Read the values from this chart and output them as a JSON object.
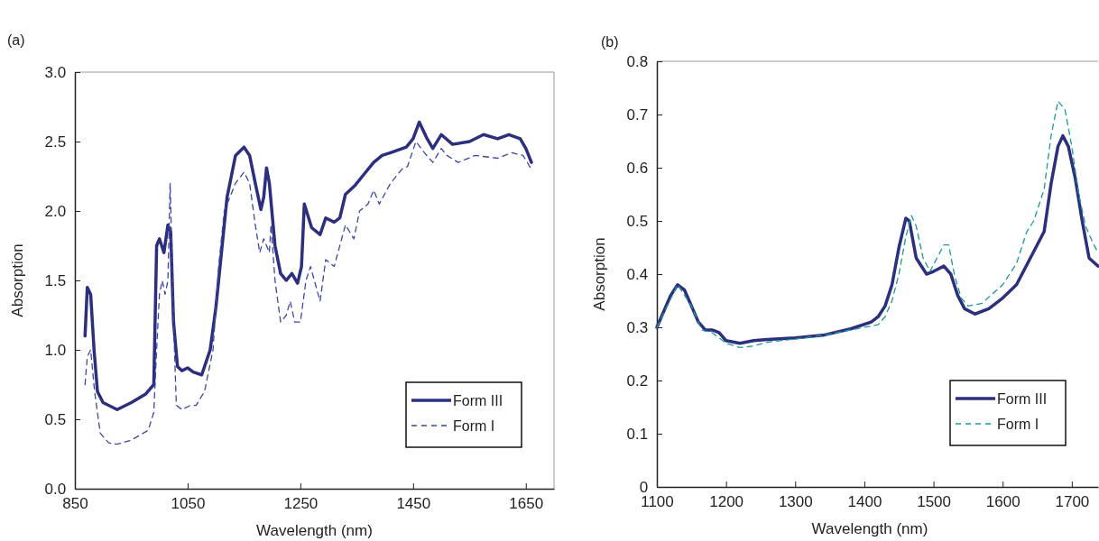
{
  "chart_data": [
    {
      "type": "line",
      "title": "(a)",
      "xlabel": "Wavelength (nm)",
      "ylabel": "Absorption",
      "xlim": [
        850,
        1700
      ],
      "xticks": [
        850,
        1050,
        1250,
        1450,
        1650
      ],
      "ylim": [
        0,
        3
      ],
      "yticks": [
        {
          "value": 0,
          "label": "0.0"
        },
        0.5,
        {
          "value": 1,
          "label": "1.0"
        },
        1.5,
        {
          "value": 2,
          "label": "2.0"
        },
        2.5,
        {
          "value": 3,
          "label": "3.0"
        }
      ],
      "legend": "bottom right",
      "grid": false,
      "series": [
        {
          "name": "Form III",
          "color": "#2b2f7e",
          "line_style": "solid",
          "x": [
            868,
            872,
            878,
            884,
            890,
            900,
            925,
            950,
            975,
            990,
            995,
            1000,
            1008,
            1015,
            1020,
            1025,
            1032,
            1040,
            1050,
            1060,
            1075,
            1090,
            1100,
            1110,
            1120,
            1135,
            1150,
            1160,
            1170,
            1180,
            1185,
            1190,
            1195,
            1205,
            1215,
            1225,
            1235,
            1245,
            1252,
            1257,
            1270,
            1285,
            1295,
            1310,
            1320,
            1330,
            1346,
            1360,
            1380,
            1395,
            1410,
            1438,
            1450,
            1461,
            1475,
            1485,
            1500,
            1520,
            1550,
            1575,
            1600,
            1620,
            1640,
            1650,
            1655,
            1660
          ],
          "values": [
            1.1,
            1.45,
            1.4,
            1.0,
            0.7,
            0.62,
            0.57,
            0.62,
            0.68,
            0.75,
            1.75,
            1.8,
            1.7,
            1.9,
            1.85,
            1.2,
            0.88,
            0.85,
            0.87,
            0.84,
            0.82,
            1.0,
            1.3,
            1.7,
            2.1,
            2.4,
            2.46,
            2.4,
            2.2,
            2.01,
            2.1,
            2.31,
            2.2,
            1.75,
            1.55,
            1.5,
            1.55,
            1.48,
            1.6,
            2.05,
            1.88,
            1.83,
            1.95,
            1.92,
            1.95,
            2.12,
            2.18,
            2.25,
            2.35,
            2.4,
            2.42,
            2.46,
            2.52,
            2.64,
            2.52,
            2.45,
            2.55,
            2.48,
            2.5,
            2.55,
            2.52,
            2.55,
            2.52,
            2.45,
            2.4,
            2.35
          ]
        },
        {
          "name": "Form I",
          "color": "#3b46a6",
          "line_style": "dashed",
          "x": [
            868,
            872,
            878,
            885,
            895,
            910,
            925,
            950,
            980,
            990,
            995,
            1000,
            1005,
            1010,
            1015,
            1019,
            1025,
            1030,
            1040,
            1055,
            1065,
            1080,
            1095,
            1105,
            1115,
            1135,
            1150,
            1160,
            1170,
            1178,
            1185,
            1195,
            1198,
            1205,
            1215,
            1225,
            1232,
            1240,
            1250,
            1260,
            1268,
            1285,
            1295,
            1310,
            1330,
            1345,
            1355,
            1370,
            1380,
            1390,
            1410,
            1430,
            1440,
            1455,
            1470,
            1485,
            1500,
            1510,
            1530,
            1560,
            1600,
            1625,
            1645,
            1660
          ],
          "values": [
            0.75,
            0.95,
            1.0,
            0.7,
            0.4,
            0.33,
            0.32,
            0.35,
            0.42,
            0.55,
            1.0,
            1.4,
            1.5,
            1.4,
            1.5,
            2.2,
            1.2,
            0.6,
            0.57,
            0.6,
            0.6,
            0.7,
            1.0,
            1.6,
            2.0,
            2.2,
            2.28,
            2.2,
            1.9,
            1.7,
            1.8,
            1.7,
            1.9,
            1.5,
            1.2,
            1.25,
            1.35,
            1.2,
            1.2,
            1.5,
            1.6,
            1.35,
            1.65,
            1.6,
            1.9,
            1.8,
            2.0,
            2.05,
            2.15,
            2.05,
            2.2,
            2.3,
            2.32,
            2.5,
            2.42,
            2.35,
            2.45,
            2.4,
            2.35,
            2.4,
            2.38,
            2.42,
            2.4,
            2.3
          ]
        }
      ]
    },
    {
      "type": "line",
      "title": "(b)",
      "xlabel": "Wavelength (nm)",
      "ylabel": "Absorption",
      "xlim": [
        1100,
        1738
      ],
      "xticks": [
        1100,
        1200,
        1300,
        1400,
        1500,
        1600,
        1700
      ],
      "ylim": [
        0,
        0.8
      ],
      "yticks": [
        0,
        0.1,
        0.2,
        0.3,
        0.4,
        0.5,
        0.6,
        0.7,
        0.8
      ],
      "legend": "bottom right",
      "grid": false,
      "series": [
        {
          "name": "Form III",
          "color": "#2b2f7e",
          "line_style": "solid",
          "x": [
            1100,
            1110,
            1120,
            1130,
            1140,
            1150,
            1160,
            1170,
            1180,
            1190,
            1200,
            1220,
            1240,
            1260,
            1300,
            1340,
            1380,
            1410,
            1420,
            1430,
            1440,
            1450,
            1460,
            1465,
            1475,
            1490,
            1500,
            1515,
            1525,
            1535,
            1545,
            1560,
            1580,
            1600,
            1620,
            1640,
            1660,
            1670,
            1680,
            1687,
            1695,
            1705,
            1715,
            1725,
            1738
          ],
          "values": [
            0.3,
            0.33,
            0.36,
            0.38,
            0.37,
            0.34,
            0.31,
            0.295,
            0.295,
            0.29,
            0.275,
            0.27,
            0.275,
            0.277,
            0.28,
            0.285,
            0.297,
            0.31,
            0.32,
            0.34,
            0.38,
            0.45,
            0.505,
            0.5,
            0.43,
            0.4,
            0.405,
            0.415,
            0.4,
            0.36,
            0.335,
            0.325,
            0.335,
            0.355,
            0.38,
            0.43,
            0.48,
            0.57,
            0.64,
            0.66,
            0.64,
            0.58,
            0.5,
            0.43,
            0.415
          ]
        },
        {
          "name": "Form I",
          "color": "#1a9a98",
          "line_style": "dashed",
          "x": [
            1100,
            1130,
            1150,
            1165,
            1180,
            1200,
            1220,
            1240,
            1260,
            1300,
            1340,
            1380,
            1420,
            1430,
            1440,
            1450,
            1460,
            1468,
            1475,
            1485,
            1495,
            1505,
            1515,
            1522,
            1530,
            1540,
            1550,
            1570,
            1600,
            1620,
            1635,
            1645,
            1660,
            1670,
            1680,
            1690,
            1700,
            1710,
            1720,
            1730,
            1738
          ],
          "values": [
            0.3,
            0.38,
            0.34,
            0.295,
            0.29,
            0.27,
            0.262,
            0.265,
            0.272,
            0.278,
            0.285,
            0.295,
            0.305,
            0.32,
            0.35,
            0.4,
            0.47,
            0.51,
            0.49,
            0.43,
            0.405,
            0.43,
            0.455,
            0.455,
            0.4,
            0.355,
            0.34,
            0.345,
            0.38,
            0.42,
            0.48,
            0.5,
            0.56,
            0.66,
            0.725,
            0.71,
            0.64,
            0.55,
            0.49,
            0.46,
            0.44
          ]
        }
      ]
    }
  ]
}
